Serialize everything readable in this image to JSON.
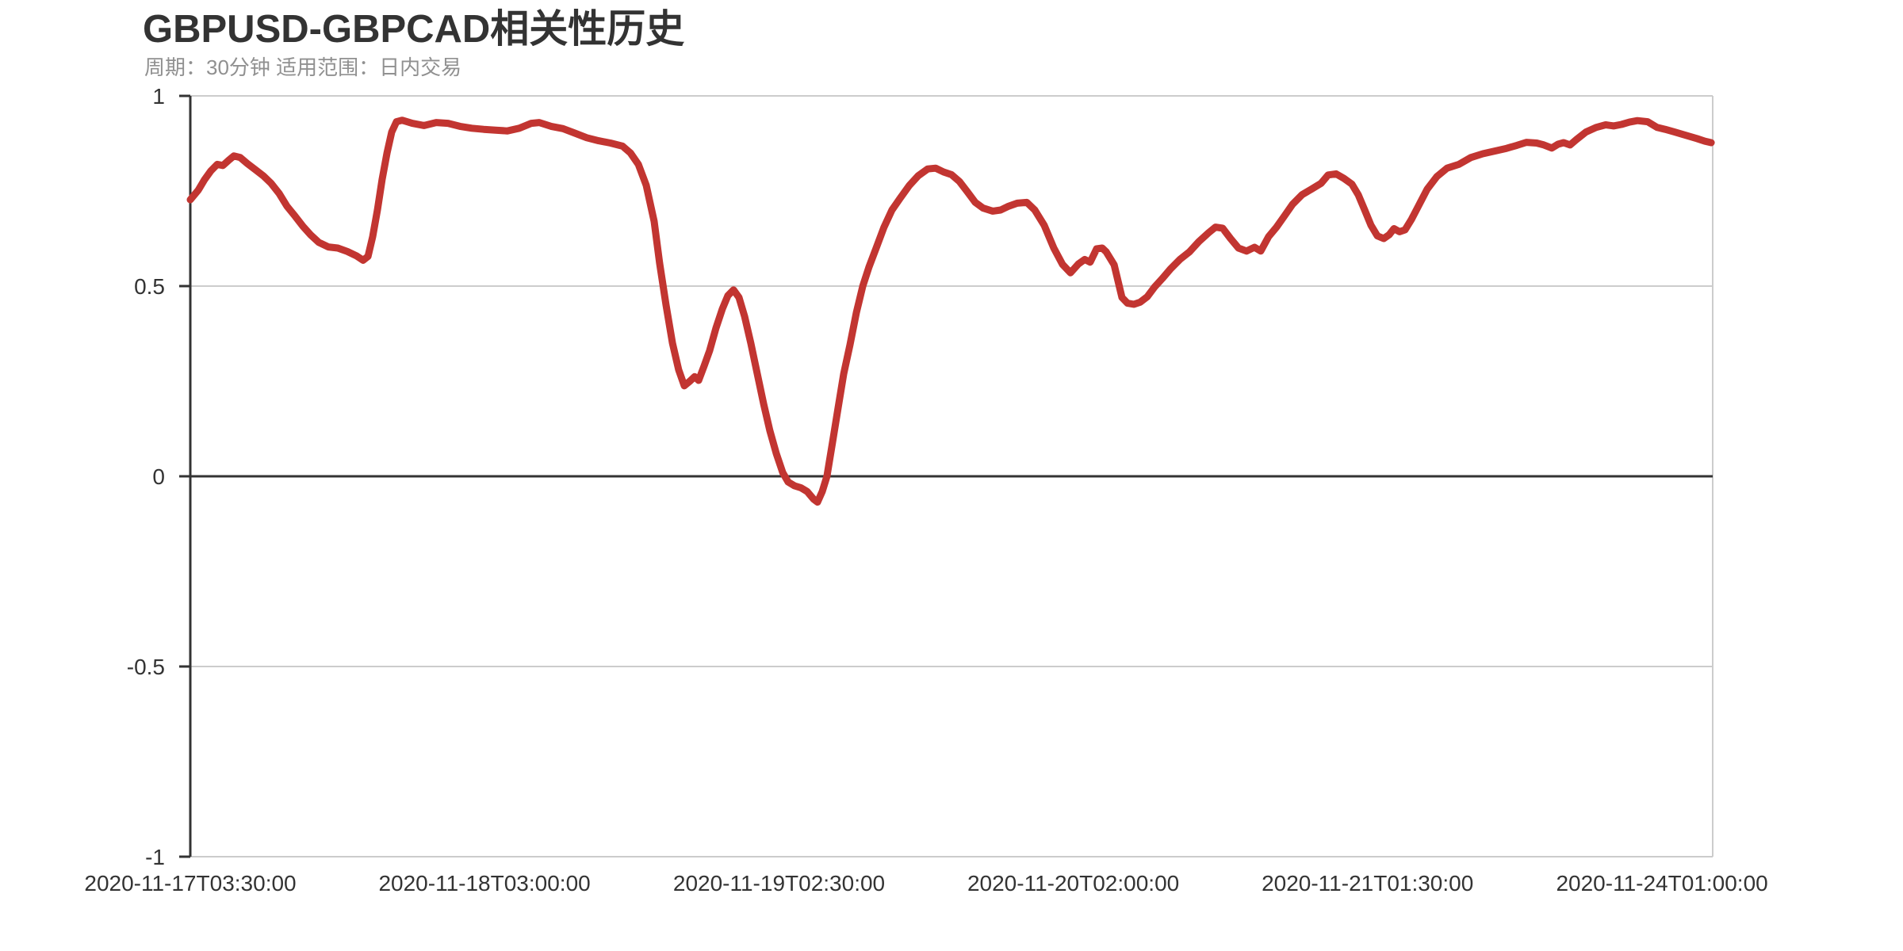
{
  "colors": {
    "line": "#c23531",
    "grid": "#cccccc",
    "axis": "#333333",
    "zero_line": "#333333",
    "title": "#333333",
    "subtitle": "#909090",
    "tick_label": "#333333",
    "background": "#ffffff"
  },
  "chart_data": {
    "type": "line",
    "title": "GBPUSD-GBPCAD相关性历史",
    "subtitle": "周期：30分钟 适用范围：日内交易",
    "xlabel": "",
    "ylabel": "",
    "ylim": [
      -1,
      1
    ],
    "grid": "horizontal-only",
    "legend": "none",
    "y_ticks": [
      1,
      0.5,
      0,
      -0.5,
      -1
    ],
    "y_tick_labels": [
      "1",
      "0.5",
      "0",
      "-0.5",
      "-1"
    ],
    "x_ticks": [
      {
        "label": "2020-11-17T03:30:00",
        "f": 0.0
      },
      {
        "label": "2020-11-18T03:00:00",
        "f": 0.1933
      },
      {
        "label": "2020-11-19T02:30:00",
        "f": 0.3867
      },
      {
        "label": "2020-11-20T02:00:00",
        "f": 0.58
      },
      {
        "label": "2020-11-21T01:30:00",
        "f": 0.7733
      },
      {
        "label": "2020-11-24T01:00:00",
        "f": 0.9667
      }
    ],
    "points": [
      [
        0.0,
        0.727
      ],
      [
        0.0052,
        0.752
      ],
      [
        0.0094,
        0.78
      ],
      [
        0.0135,
        0.803
      ],
      [
        0.0177,
        0.82
      ],
      [
        0.0214,
        0.817
      ],
      [
        0.025,
        0.83
      ],
      [
        0.0286,
        0.842
      ],
      [
        0.0328,
        0.838
      ],
      [
        0.0375,
        0.822
      ],
      [
        0.0427,
        0.806
      ],
      [
        0.0479,
        0.79
      ],
      [
        0.0531,
        0.77
      ],
      [
        0.0583,
        0.744
      ],
      [
        0.0635,
        0.71
      ],
      [
        0.0688,
        0.684
      ],
      [
        0.074,
        0.657
      ],
      [
        0.0792,
        0.634
      ],
      [
        0.0844,
        0.615
      ],
      [
        0.0906,
        0.603
      ],
      [
        0.0969,
        0.6
      ],
      [
        0.1031,
        0.591
      ],
      [
        0.1094,
        0.579
      ],
      [
        0.1135,
        0.568
      ],
      [
        0.1167,
        0.578
      ],
      [
        0.1198,
        0.63
      ],
      [
        0.1229,
        0.7
      ],
      [
        0.126,
        0.78
      ],
      [
        0.1292,
        0.85
      ],
      [
        0.1323,
        0.905
      ],
      [
        0.1354,
        0.932
      ],
      [
        0.1391,
        0.936
      ],
      [
        0.1458,
        0.928
      ],
      [
        0.1536,
        0.922
      ],
      [
        0.1615,
        0.93
      ],
      [
        0.1693,
        0.928
      ],
      [
        0.1771,
        0.92
      ],
      [
        0.1849,
        0.915
      ],
      [
        0.1927,
        0.912
      ],
      [
        0.2005,
        0.91
      ],
      [
        0.2083,
        0.908
      ],
      [
        0.2161,
        0.915
      ],
      [
        0.224,
        0.928
      ],
      [
        0.2292,
        0.93
      ],
      [
        0.237,
        0.92
      ],
      [
        0.2448,
        0.914
      ],
      [
        0.2526,
        0.902
      ],
      [
        0.2604,
        0.89
      ],
      [
        0.2682,
        0.882
      ],
      [
        0.276,
        0.876
      ],
      [
        0.2839,
        0.868
      ],
      [
        0.2891,
        0.85
      ],
      [
        0.2943,
        0.82
      ],
      [
        0.2995,
        0.765
      ],
      [
        0.3047,
        0.67
      ],
      [
        0.3083,
        0.56
      ],
      [
        0.3125,
        0.45
      ],
      [
        0.3167,
        0.35
      ],
      [
        0.3208,
        0.28
      ],
      [
        0.3245,
        0.238
      ],
      [
        0.3281,
        0.25
      ],
      [
        0.3313,
        0.262
      ],
      [
        0.3339,
        0.252
      ],
      [
        0.3375,
        0.29
      ],
      [
        0.3411,
        0.33
      ],
      [
        0.3453,
        0.39
      ],
      [
        0.3495,
        0.44
      ],
      [
        0.3531,
        0.475
      ],
      [
        0.3568,
        0.49
      ],
      [
        0.3604,
        0.47
      ],
      [
        0.3641,
        0.42
      ],
      [
        0.3682,
        0.35
      ],
      [
        0.3724,
        0.27
      ],
      [
        0.3766,
        0.19
      ],
      [
        0.3807,
        0.12
      ],
      [
        0.3849,
        0.06
      ],
      [
        0.3891,
        0.01
      ],
      [
        0.3927,
        -0.015
      ],
      [
        0.3969,
        -0.025
      ],
      [
        0.401,
        -0.03
      ],
      [
        0.4052,
        -0.04
      ],
      [
        0.4094,
        -0.06
      ],
      [
        0.412,
        -0.068
      ],
      [
        0.4151,
        -0.04
      ],
      [
        0.4182,
        0.0
      ],
      [
        0.4219,
        0.09
      ],
      [
        0.4255,
        0.18
      ],
      [
        0.4292,
        0.27
      ],
      [
        0.4333,
        0.345
      ],
      [
        0.4375,
        0.43
      ],
      [
        0.4417,
        0.5
      ],
      [
        0.4458,
        0.55
      ],
      [
        0.4505,
        0.6
      ],
      [
        0.4557,
        0.655
      ],
      [
        0.4609,
        0.7
      ],
      [
        0.4661,
        0.73
      ],
      [
        0.4724,
        0.765
      ],
      [
        0.4781,
        0.79
      ],
      [
        0.4844,
        0.808
      ],
      [
        0.4896,
        0.81
      ],
      [
        0.4948,
        0.8
      ],
      [
        0.5,
        0.793
      ],
      [
        0.5052,
        0.775
      ],
      [
        0.5104,
        0.748
      ],
      [
        0.5156,
        0.72
      ],
      [
        0.5208,
        0.705
      ],
      [
        0.5271,
        0.697
      ],
      [
        0.5323,
        0.7
      ],
      [
        0.5375,
        0.71
      ],
      [
        0.5432,
        0.718
      ],
      [
        0.5495,
        0.72
      ],
      [
        0.5547,
        0.7
      ],
      [
        0.5609,
        0.66
      ],
      [
        0.5672,
        0.6
      ],
      [
        0.5729,
        0.557
      ],
      [
        0.5781,
        0.535
      ],
      [
        0.5833,
        0.558
      ],
      [
        0.5875,
        0.57
      ],
      [
        0.5911,
        0.563
      ],
      [
        0.5953,
        0.598
      ],
      [
        0.599,
        0.6
      ],
      [
        0.6016,
        0.59
      ],
      [
        0.6068,
        0.556
      ],
      [
        0.612,
        0.47
      ],
      [
        0.6156,
        0.455
      ],
      [
        0.6198,
        0.452
      ],
      [
        0.624,
        0.458
      ],
      [
        0.6286,
        0.472
      ],
      [
        0.6333,
        0.497
      ],
      [
        0.6385,
        0.52
      ],
      [
        0.6438,
        0.545
      ],
      [
        0.65,
        0.57
      ],
      [
        0.6563,
        0.59
      ],
      [
        0.6625,
        0.617
      ],
      [
        0.6688,
        0.64
      ],
      [
        0.6734,
        0.655
      ],
      [
        0.6781,
        0.652
      ],
      [
        0.6833,
        0.625
      ],
      [
        0.6885,
        0.6
      ],
      [
        0.6938,
        0.592
      ],
      [
        0.699,
        0.602
      ],
      [
        0.7031,
        0.592
      ],
      [
        0.7083,
        0.63
      ],
      [
        0.7135,
        0.655
      ],
      [
        0.7188,
        0.685
      ],
      [
        0.724,
        0.715
      ],
      [
        0.7302,
        0.74
      ],
      [
        0.7365,
        0.755
      ],
      [
        0.7427,
        0.77
      ],
      [
        0.7474,
        0.792
      ],
      [
        0.7526,
        0.795
      ],
      [
        0.7578,
        0.783
      ],
      [
        0.763,
        0.768
      ],
      [
        0.7672,
        0.74
      ],
      [
        0.7714,
        0.7
      ],
      [
        0.7755,
        0.66
      ],
      [
        0.7797,
        0.632
      ],
      [
        0.7839,
        0.625
      ],
      [
        0.7875,
        0.635
      ],
      [
        0.7906,
        0.651
      ],
      [
        0.7943,
        0.643
      ],
      [
        0.7979,
        0.648
      ],
      [
        0.8021,
        0.675
      ],
      [
        0.8073,
        0.715
      ],
      [
        0.8125,
        0.755
      ],
      [
        0.8188,
        0.788
      ],
      [
        0.8255,
        0.81
      ],
      [
        0.8333,
        0.82
      ],
      [
        0.8411,
        0.838
      ],
      [
        0.849,
        0.848
      ],
      [
        0.8568,
        0.855
      ],
      [
        0.8646,
        0.862
      ],
      [
        0.8714,
        0.87
      ],
      [
        0.8776,
        0.878
      ],
      [
        0.8844,
        0.876
      ],
      [
        0.8891,
        0.871
      ],
      [
        0.8943,
        0.863
      ],
      [
        0.8984,
        0.873
      ],
      [
        0.9021,
        0.877
      ],
      [
        0.9063,
        0.871
      ],
      [
        0.9104,
        0.885
      ],
      [
        0.9167,
        0.905
      ],
      [
        0.9234,
        0.917
      ],
      [
        0.9297,
        0.924
      ],
      [
        0.9349,
        0.921
      ],
      [
        0.9401,
        0.925
      ],
      [
        0.9453,
        0.931
      ],
      [
        0.9505,
        0.935
      ],
      [
        0.9573,
        0.932
      ],
      [
        0.9635,
        0.917
      ],
      [
        0.9688,
        0.912
      ],
      [
        0.975,
        0.905
      ],
      [
        0.9818,
        0.897
      ],
      [
        0.9896,
        0.888
      ],
      [
        0.9948,
        0.881
      ],
      [
        0.999,
        0.877
      ]
    ]
  }
}
